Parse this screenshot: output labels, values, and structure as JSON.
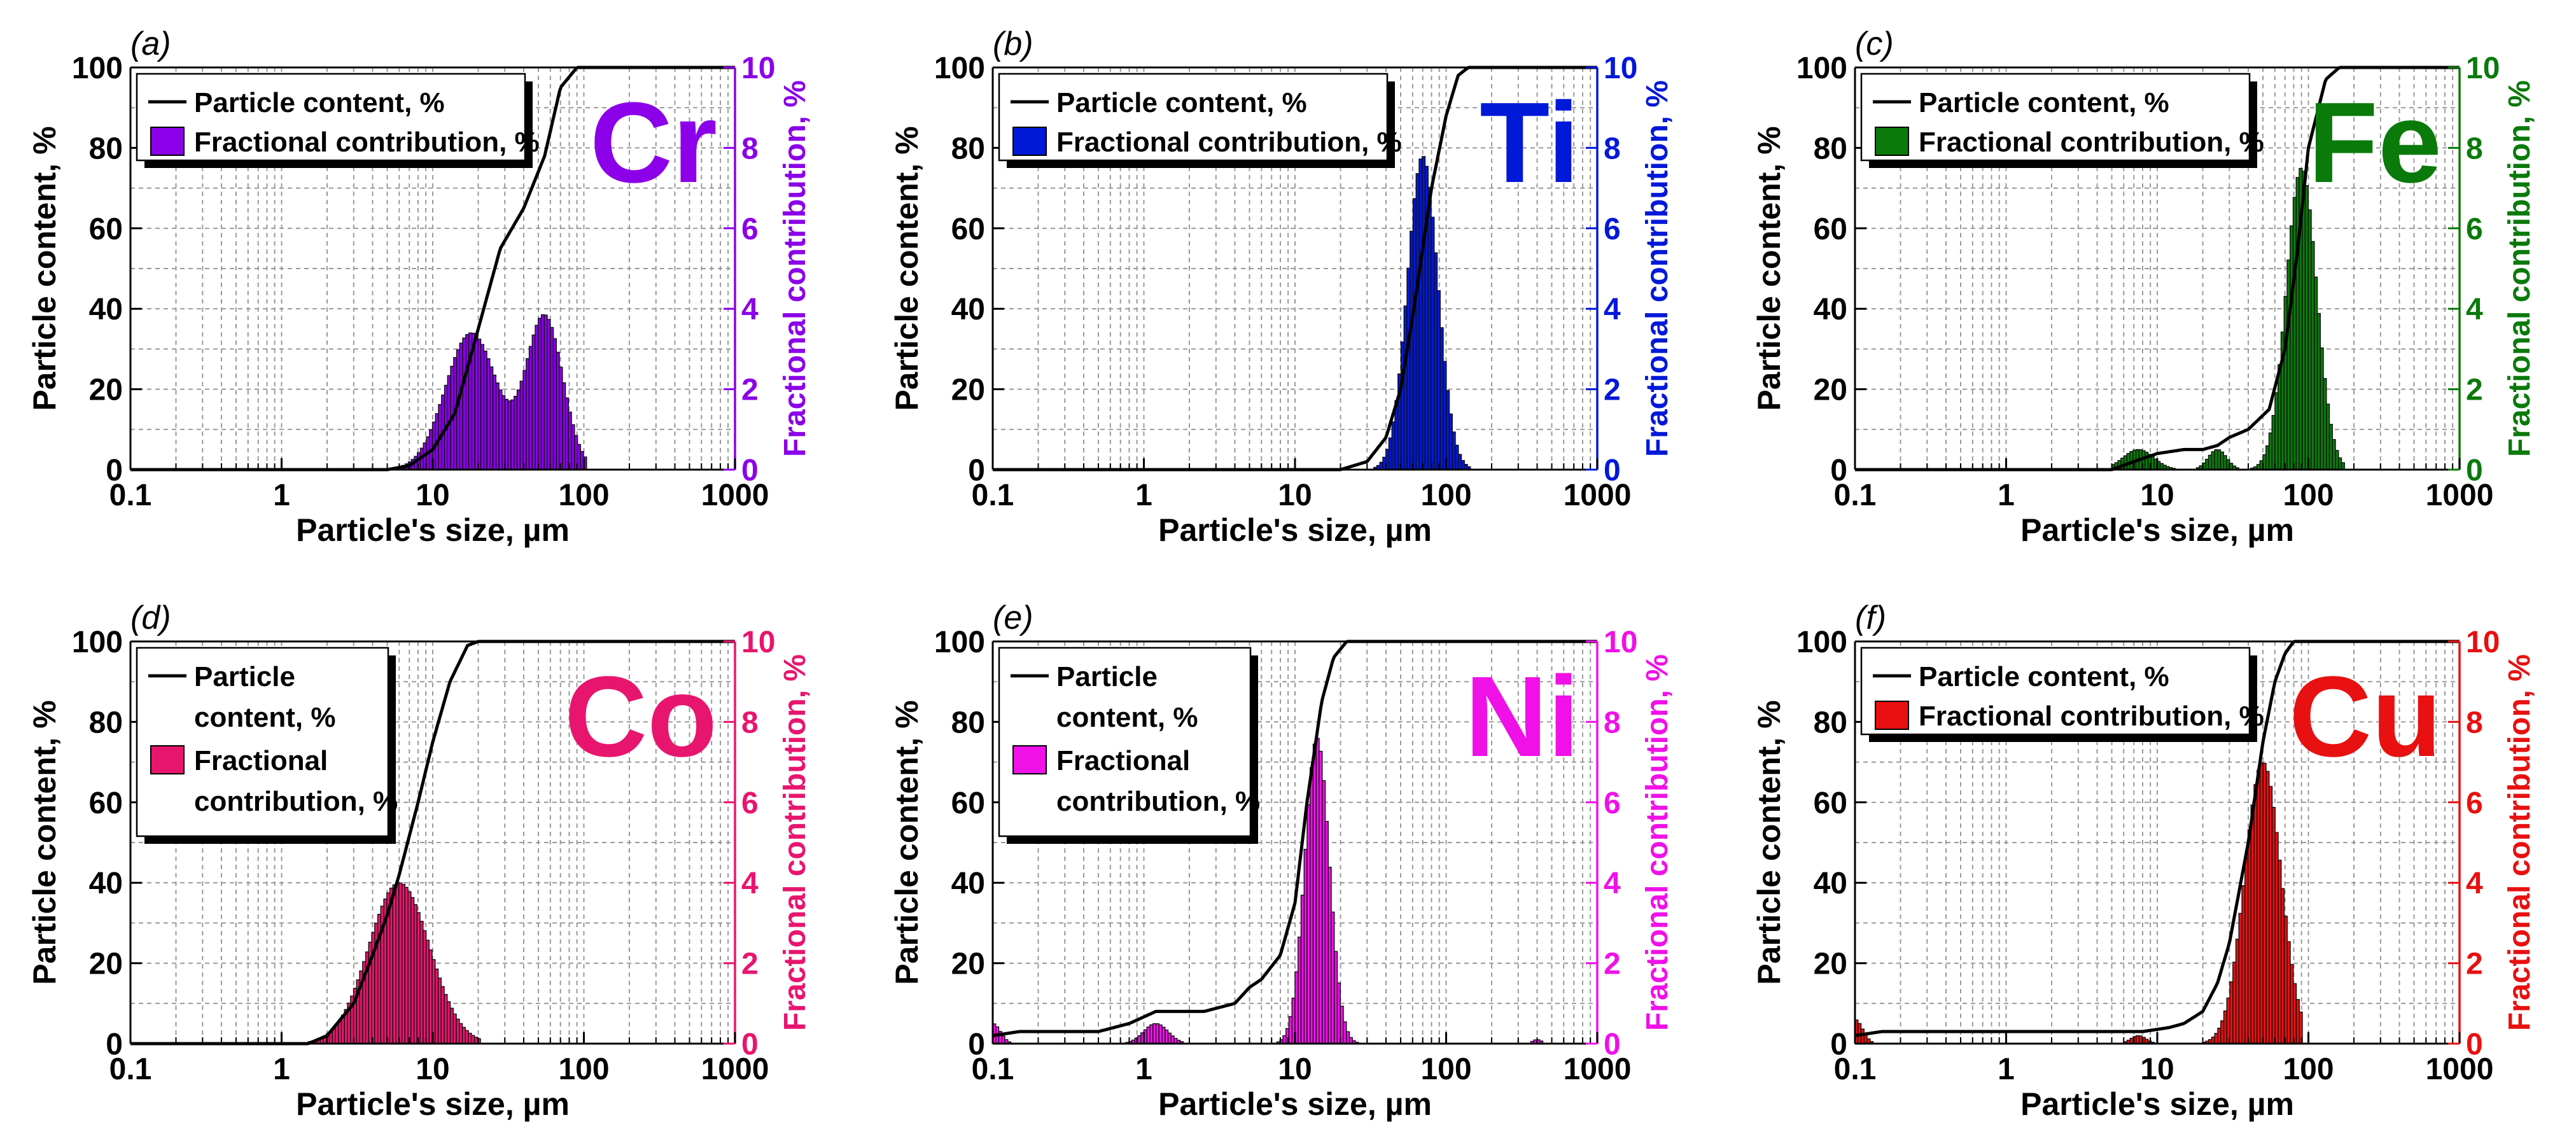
{
  "figure": {
    "shared_xlabel": "Particle's size, µm",
    "shared_ylabel_left": "Particle content, %",
    "shared_ylabel_right": "Fractional contribution, %"
  },
  "chart_data": [
    {
      "panel_label": "(a)",
      "element": "Cr",
      "color": "#8B00E8",
      "type": "bar+line",
      "title": "",
      "xlabel": "Particle's size, µm",
      "ylabel": "Particle content, %",
      "y2label": "Fractional contribution, %",
      "xscale": "log",
      "xlim": [
        0.1,
        1000
      ],
      "ylim": [
        0,
        100
      ],
      "y2lim": [
        0,
        10
      ],
      "xticks": [
        "0.1",
        "1",
        "10",
        "100",
        "1000"
      ],
      "yticks": [
        "0",
        "20",
        "40",
        "60",
        "80",
        "100"
      ],
      "y2ticks": [
        "0",
        "2",
        "4",
        "6",
        "8",
        "10"
      ],
      "legend": {
        "entries": [
          "Particle content, %",
          "Fractional contribution, %"
        ],
        "placement": "top-left"
      },
      "series": [
        {
          "name": "Particle content, %",
          "axis": "left",
          "kind": "line",
          "x": [
            0.1,
            5,
            7,
            10,
            14,
            20,
            28,
            40,
            55,
            70,
            90,
            100,
            1000
          ],
          "y": [
            0,
            0,
            1,
            5,
            14,
            35,
            55,
            65,
            78,
            95,
            100,
            100,
            100
          ]
        },
        {
          "name": "Fractional contribution, %",
          "axis": "right",
          "kind": "bars",
          "peaks": [
            {
              "center": 18,
              "height": 3.4,
              "width": 0.17
            },
            {
              "center": 55,
              "height": 3.8,
              "width": 0.12
            }
          ],
          "range": [
            6,
            100
          ]
        }
      ]
    },
    {
      "panel_label": "(b)",
      "element": "Ti",
      "color": "#0018D8",
      "type": "bar+line",
      "title": "",
      "xlabel": "Particle's size, µm",
      "ylabel": "Particle content, %",
      "y2label": "Fractional contribution, %",
      "xscale": "log",
      "xlim": [
        0.1,
        1000
      ],
      "ylim": [
        0,
        100
      ],
      "y2lim": [
        0,
        10
      ],
      "xticks": [
        "0.1",
        "1",
        "10",
        "100",
        "1000"
      ],
      "yticks": [
        "0",
        "20",
        "40",
        "60",
        "80",
        "100"
      ],
      "y2ticks": [
        "0",
        "2",
        "4",
        "6",
        "8",
        "10"
      ],
      "legend": {
        "entries": [
          "Particle content, %",
          "Fractional contribution, %"
        ],
        "placement": "top-left"
      },
      "series": [
        {
          "name": "Particle content, %",
          "axis": "left",
          "kind": "line",
          "x": [
            0.1,
            20,
            30,
            40,
            50,
            60,
            70,
            80,
            100,
            120,
            140,
            1000
          ],
          "y": [
            0,
            0,
            2,
            8,
            20,
            38,
            55,
            70,
            88,
            98,
            100,
            100
          ]
        },
        {
          "name": "Fractional contribution, %",
          "axis": "right",
          "kind": "bars",
          "peaks": [
            {
              "center": 70,
              "height": 7.8,
              "width": 0.1
            }
          ],
          "range": [
            20,
            140
          ]
        }
      ]
    },
    {
      "panel_label": "(c)",
      "element": "Fe",
      "color": "#0A7A0A",
      "type": "bar+line",
      "title": "",
      "xlabel": "Particle's size, µm",
      "ylabel": "Particle content, %",
      "y2label": "Fractional contribution, %",
      "xscale": "log",
      "xlim": [
        0.1,
        1000
      ],
      "ylim": [
        0,
        100
      ],
      "y2lim": [
        0,
        10
      ],
      "xticks": [
        "0.1",
        "1",
        "10",
        "100",
        "1000"
      ],
      "yticks": [
        "0",
        "20",
        "40",
        "60",
        "80",
        "100"
      ],
      "y2ticks": [
        "0",
        "2",
        "4",
        "6",
        "8",
        "10"
      ],
      "legend": {
        "entries": [
          "Particle content, %",
          "Fractional contribution, %"
        ],
        "placement": "top-left"
      },
      "series": [
        {
          "name": "Particle content, %",
          "axis": "left",
          "kind": "line",
          "x": [
            0.1,
            5,
            7,
            10,
            15,
            20,
            25,
            30,
            40,
            55,
            70,
            85,
            100,
            130,
            160,
            1000
          ],
          "y": [
            0,
            0,
            2,
            4,
            5,
            5,
            6,
            8,
            10,
            15,
            30,
            55,
            80,
            97,
            100,
            100
          ]
        },
        {
          "name": "Fractional contribution, %",
          "axis": "right",
          "kind": "bars",
          "peaks": [
            {
              "center": 7.5,
              "height": 0.5,
              "width": 0.1
            },
            {
              "center": 25,
              "height": 0.5,
              "width": 0.06
            },
            {
              "center": 90,
              "height": 7.5,
              "width": 0.1
            }
          ],
          "range": [
            5,
            170
          ]
        }
      ]
    },
    {
      "panel_label": "(d)",
      "element": "Co",
      "color": "#E8156E",
      "type": "bar+line",
      "title": "",
      "xlabel": "Particle's size, µm",
      "ylabel": "Particle content, %",
      "y2label": "Fractional contribution, %",
      "xscale": "log",
      "xlim": [
        0.1,
        1000
      ],
      "ylim": [
        0,
        100
      ],
      "y2lim": [
        0,
        10
      ],
      "xticks": [
        "0.1",
        "1",
        "10",
        "100",
        "1000"
      ],
      "yticks": [
        "0",
        "20",
        "40",
        "60",
        "80",
        "100"
      ],
      "y2ticks": [
        "0",
        "2",
        "4",
        "6",
        "8",
        "10"
      ],
      "legend": {
        "entries": [
          "Particle content, %",
          "Fractional contribution, %"
        ],
        "wrapped": [
          [
            "Particle",
            "content, %"
          ],
          [
            "Fractional",
            "contribution, %"
          ]
        ],
        "placement": "top-left"
      },
      "series": [
        {
          "name": "Particle content, %",
          "axis": "left",
          "kind": "line",
          "x": [
            0.1,
            1.5,
            2,
            3,
            4,
            5,
            6,
            8,
            10,
            13,
            17,
            20,
            1000
          ],
          "y": [
            0,
            0,
            2,
            10,
            22,
            32,
            42,
            60,
            75,
            90,
            99,
            100,
            100
          ]
        },
        {
          "name": "Fractional contribution, %",
          "axis": "right",
          "kind": "bars",
          "peaks": [
            {
              "center": 6,
              "height": 4.0,
              "width": 0.2
            }
          ],
          "range": [
            1.5,
            20
          ]
        }
      ]
    },
    {
      "panel_label": "(e)",
      "element": "Ni",
      "color": "#F010E8",
      "type": "bar+line",
      "title": "",
      "xlabel": "Particle's size, µm",
      "ylabel": "Particle content, %",
      "y2label": "Fractional contribution, %",
      "xscale": "log",
      "xlim": [
        0.1,
        1000
      ],
      "ylim": [
        0,
        100
      ],
      "y2lim": [
        0,
        10
      ],
      "xticks": [
        "0.1",
        "1",
        "10",
        "100",
        "1000"
      ],
      "yticks": [
        "0",
        "20",
        "40",
        "60",
        "80",
        "100"
      ],
      "y2ticks": [
        "0",
        "2",
        "4",
        "6",
        "8",
        "10"
      ],
      "legend": {
        "entries": [
          "Particle content, %",
          "Fractional contribution, %"
        ],
        "wrapped": [
          [
            "Particle",
            "content, %"
          ],
          [
            "Fractional",
            "contribution, %"
          ]
        ],
        "placement": "top-left"
      },
      "series": [
        {
          "name": "Particle content, %",
          "axis": "left",
          "kind": "line",
          "x": [
            0.1,
            0.15,
            0.5,
            0.8,
            1.2,
            1.6,
            2.5,
            4,
            5,
            6,
            8,
            10,
            12,
            15,
            18,
            22,
            25,
            1000
          ],
          "y": [
            2,
            3,
            3,
            5,
            8,
            8,
            8,
            10,
            14,
            16,
            22,
            35,
            60,
            85,
            96,
            100,
            100,
            100
          ]
        },
        {
          "name": "Fractional contribution, %",
          "axis": "right",
          "kind": "bars",
          "peaks": [
            {
              "center": 0.1,
              "height": 0.5,
              "width": 0.05
            },
            {
              "center": 1.2,
              "height": 0.5,
              "width": 0.08
            },
            {
              "center": 14,
              "height": 7.6,
              "width": 0.08
            },
            {
              "center": 400,
              "height": 0.1,
              "width": 0.03
            }
          ],
          "range": [
            0.1,
            450
          ]
        }
      ]
    },
    {
      "panel_label": "(f)",
      "element": "Cu",
      "color": "#E81010",
      "type": "bar+line",
      "title": "",
      "xlabel": "Particle's size, µm",
      "ylabel": "Particle content, %",
      "y2label": "Fractional contribution, %",
      "xscale": "log",
      "xlim": [
        0.1,
        1000
      ],
      "ylim": [
        0,
        100
      ],
      "y2lim": [
        0,
        10
      ],
      "xticks": [
        "0.1",
        "1",
        "10",
        "100",
        "1000"
      ],
      "yticks": [
        "0",
        "20",
        "40",
        "60",
        "80",
        "100"
      ],
      "y2ticks": [
        "0",
        "2",
        "4",
        "6",
        "8",
        "10"
      ],
      "legend": {
        "entries": [
          "Particle content, %",
          "Fractional contribution, %"
        ],
        "placement": "top-left"
      },
      "series": [
        {
          "name": "Particle content, %",
          "axis": "left",
          "kind": "line",
          "x": [
            0.1,
            0.15,
            8,
            12,
            15,
            20,
            25,
            30,
            40,
            50,
            60,
            70,
            80,
            90,
            1000
          ],
          "y": [
            2,
            3,
            3,
            4,
            5,
            8,
            15,
            25,
            50,
            75,
            90,
            97,
            100,
            100,
            100
          ]
        },
        {
          "name": "Fractional contribution, %",
          "axis": "right",
          "kind": "bars",
          "peaks": [
            {
              "center": 0.1,
              "height": 0.6,
              "width": 0.05
            },
            {
              "center": 7.5,
              "height": 0.2,
              "width": 0.05
            },
            {
              "center": 50,
              "height": 7.0,
              "width": 0.12
            }
          ],
          "range": [
            0.1,
            90
          ]
        }
      ]
    }
  ]
}
